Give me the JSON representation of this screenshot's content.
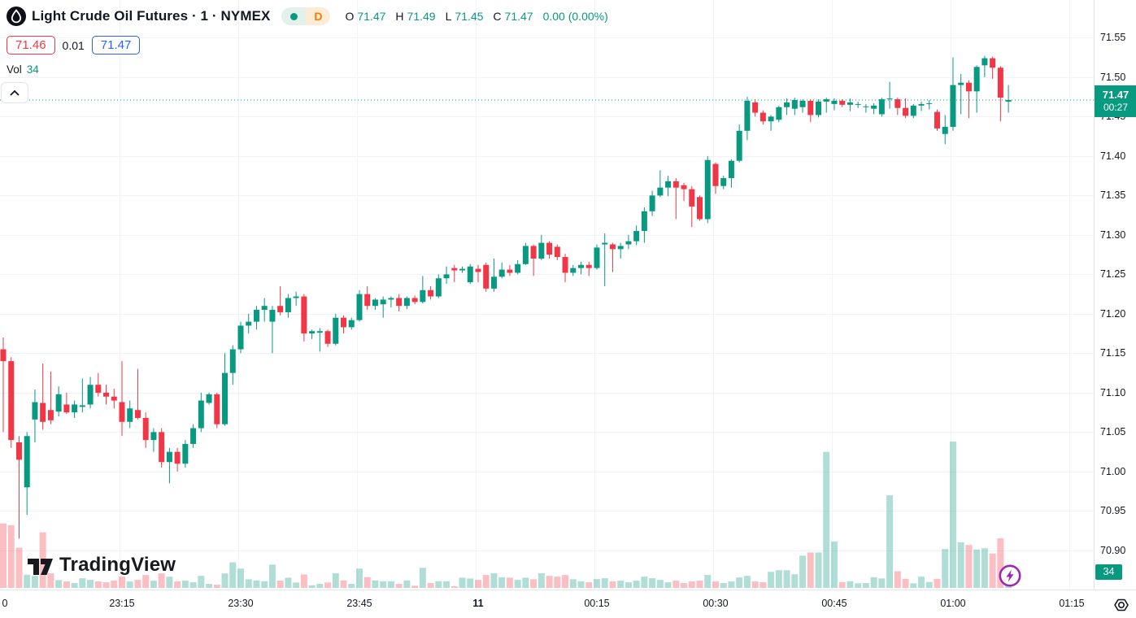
{
  "header": {
    "symbol": "Light Crude Oil Futures · 1 · NYMEX",
    "delayed_badge": "D",
    "ohlc": {
      "open_label": "O",
      "open": "71.47",
      "high_label": "H",
      "high": "71.49",
      "low_label": "L",
      "low": "71.45",
      "close_label": "C",
      "close": "71.47",
      "change": "0.00 (0.00%)"
    },
    "bid": "71.46",
    "spread": "0.01",
    "ask": "71.47",
    "volume_label": "Vol",
    "volume_value": "34"
  },
  "price_scale": {
    "labels": [
      "71.55",
      "71.50",
      "71.45",
      "71.40",
      "71.35",
      "71.30",
      "71.25",
      "71.20",
      "71.15",
      "71.10",
      "71.05",
      "71.00",
      "70.95",
      "70.90"
    ],
    "last_price": "71.47",
    "countdown": "00:27",
    "volume_badge": "34"
  },
  "time_scale": {
    "labels": [
      {
        "text": "0",
        "m": 0,
        "bold": false
      },
      {
        "text": "23:15",
        "m": 15,
        "bold": false
      },
      {
        "text": "23:30",
        "m": 30,
        "bold": false
      },
      {
        "text": "23:45",
        "m": 45,
        "bold": false
      },
      {
        "text": "11",
        "m": 60,
        "bold": true
      },
      {
        "text": "00:15",
        "m": 75,
        "bold": false
      },
      {
        "text": "00:30",
        "m": 90,
        "bold": false
      },
      {
        "text": "00:45",
        "m": 105,
        "bold": false
      },
      {
        "text": "01:00",
        "m": 120,
        "bold": false
      },
      {
        "text": "01:15",
        "m": 135,
        "bold": false
      }
    ]
  },
  "watermark": "TradingView",
  "colors": {
    "up": "#089981",
    "down": "#f23645",
    "up_volume": "rgba(8,153,129,0.32)",
    "down_volume": "rgba(242,54,69,0.32)",
    "grid": "#f0f3fa",
    "axis_border": "#e0e3eb",
    "text": "#131722",
    "bid_red": "#f23645",
    "ask_blue": "#2962ff",
    "delayed_orange": "#f57c00",
    "lightning_purple": "#9c27b0"
  },
  "chart_data": {
    "type": "candlestick",
    "symbol": "Light Crude Oil Futures",
    "exchange": "NYMEX",
    "interval": "1 minute",
    "start_time": "23:00",
    "end_time": "01:07",
    "price_axis_range": [
      70.9,
      71.55
    ],
    "time_axis_range": [
      "23:00",
      "01:15"
    ],
    "grid": true,
    "last_price": 71.47,
    "candles_format": [
      "open",
      "high",
      "low",
      "close",
      "volume"
    ],
    "candles": [
      [
        71.155,
        71.17,
        71.05,
        71.14,
        880
      ],
      [
        71.14,
        71.145,
        71.03,
        71.04,
        858
      ],
      [
        71.037,
        71.045,
        70.915,
        71.015,
        550
      ],
      [
        70.98,
        71.05,
        70.945,
        71.045,
        180
      ],
      [
        71.066,
        71.104,
        71.037,
        71.088,
        165
      ],
      [
        71.087,
        71.137,
        71.053,
        71.063,
        760
      ],
      [
        71.078,
        71.127,
        71.06,
        71.065,
        200
      ],
      [
        71.076,
        71.108,
        71.07,
        71.098,
        107
      ],
      [
        71.085,
        71.1,
        71.073,
        71.075,
        88
      ],
      [
        71.075,
        71.09,
        71.068,
        71.085,
        66
      ],
      [
        71.082,
        71.118,
        71.075,
        71.084,
        132
      ],
      [
        71.085,
        71.12,
        71.08,
        71.11,
        110
      ],
      [
        71.11,
        71.125,
        71.095,
        71.1,
        88
      ],
      [
        71.1,
        71.11,
        71.085,
        71.095,
        77
      ],
      [
        71.095,
        71.105,
        71.08,
        71.09,
        99
      ],
      [
        71.088,
        71.14,
        71.045,
        71.063,
        154
      ],
      [
        71.063,
        71.09,
        71.055,
        71.08,
        88
      ],
      [
        71.078,
        71.13,
        71.066,
        71.068,
        110
      ],
      [
        71.068,
        71.075,
        71.03,
        71.04,
        176
      ],
      [
        71.04,
        71.055,
        71.025,
        71.05,
        99
      ],
      [
        71.05,
        71.055,
        71.005,
        71.012,
        198
      ],
      [
        71.012,
        71.03,
        70.985,
        71.025,
        154
      ],
      [
        71.025,
        71.03,
        71.0,
        71.01,
        88
      ],
      [
        71.01,
        71.04,
        71.005,
        71.035,
        99
      ],
      [
        71.035,
        71.06,
        71.03,
        71.055,
        77
      ],
      [
        71.055,
        71.1,
        71.05,
        71.09,
        165
      ],
      [
        71.087,
        71.1,
        71.085,
        71.098,
        55
      ],
      [
        71.098,
        71.1,
        71.055,
        71.06,
        44
      ],
      [
        71.06,
        71.15,
        71.058,
        71.125,
        198
      ],
      [
        71.125,
        71.16,
        71.11,
        71.155,
        350
      ],
      [
        71.155,
        71.19,
        71.15,
        71.185,
        264
      ],
      [
        71.185,
        71.2,
        71.175,
        71.19,
        118
      ],
      [
        71.19,
        71.21,
        71.18,
        71.205,
        102
      ],
      [
        71.205,
        71.22,
        71.19,
        71.21,
        91
      ],
      [
        71.19,
        71.21,
        71.15,
        71.205,
        319
      ],
      [
        71.21,
        71.235,
        71.198,
        71.202,
        99
      ],
      [
        71.202,
        71.225,
        71.195,
        71.22,
        140
      ],
      [
        71.22,
        71.228,
        71.21,
        71.222,
        74
      ],
      [
        71.222,
        71.225,
        71.165,
        71.175,
        184
      ],
      [
        71.175,
        71.18,
        71.168,
        71.178,
        36
      ],
      [
        71.176,
        71.182,
        71.152,
        71.178,
        55
      ],
      [
        71.178,
        71.18,
        71.158,
        71.162,
        74
      ],
      [
        71.162,
        71.2,
        71.16,
        71.195,
        201
      ],
      [
        71.195,
        71.198,
        71.175,
        71.183,
        102
      ],
      [
        71.183,
        71.195,
        71.18,
        71.192,
        55
      ],
      [
        71.192,
        71.23,
        71.19,
        71.225,
        264
      ],
      [
        71.225,
        71.235,
        71.205,
        71.21,
        146
      ],
      [
        71.21,
        71.22,
        71.205,
        71.218,
        102
      ],
      [
        71.212,
        71.222,
        71.195,
        71.218,
        91
      ],
      [
        71.218,
        71.222,
        71.208,
        71.22,
        91
      ],
      [
        71.22,
        71.225,
        71.203,
        71.21,
        55
      ],
      [
        71.21,
        71.222,
        71.206,
        71.22,
        102
      ],
      [
        71.22,
        71.223,
        71.212,
        71.215,
        30
      ],
      [
        71.215,
        71.248,
        71.213,
        71.23,
        275
      ],
      [
        71.23,
        71.235,
        71.218,
        71.222,
        66
      ],
      [
        71.222,
        71.25,
        71.22,
        71.245,
        91
      ],
      [
        71.245,
        71.26,
        71.238,
        71.25,
        91
      ],
      [
        71.258,
        71.262,
        71.24,
        71.255,
        19
      ],
      [
        71.255,
        71.26,
        71.252,
        71.257,
        140
      ],
      [
        71.24,
        71.263,
        71.238,
        71.26,
        129
      ],
      [
        71.257,
        71.262,
        71.24,
        71.253,
        110
      ],
      [
        71.262,
        71.265,
        71.228,
        71.232,
        176
      ],
      [
        71.232,
        71.27,
        71.228,
        71.247,
        201
      ],
      [
        71.247,
        71.265,
        71.245,
        71.256,
        146
      ],
      [
        71.256,
        71.262,
        71.248,
        71.252,
        140
      ],
      [
        71.252,
        71.268,
        71.25,
        71.263,
        110
      ],
      [
        71.263,
        71.29,
        71.262,
        71.286,
        140
      ],
      [
        71.286,
        71.288,
        71.248,
        71.27,
        118
      ],
      [
        71.27,
        71.3,
        71.268,
        71.29,
        201
      ],
      [
        71.29,
        71.292,
        71.27,
        71.275,
        165
      ],
      [
        71.285,
        71.288,
        71.268,
        71.272,
        154
      ],
      [
        71.272,
        71.276,
        71.24,
        71.252,
        176
      ],
      [
        71.252,
        71.262,
        71.248,
        71.258,
        118
      ],
      [
        71.258,
        71.266,
        71.25,
        71.262,
        91
      ],
      [
        71.262,
        71.266,
        71.248,
        71.258,
        77
      ],
      [
        71.258,
        71.288,
        71.256,
        71.284,
        121
      ],
      [
        71.288,
        71.302,
        71.235,
        71.29,
        132
      ],
      [
        71.288,
        71.29,
        71.253,
        71.282,
        88
      ],
      [
        71.282,
        71.29,
        71.27,
        71.286,
        99
      ],
      [
        71.288,
        71.3,
        71.282,
        71.292,
        77
      ],
      [
        71.292,
        71.312,
        71.287,
        71.305,
        99
      ],
      [
        71.305,
        71.335,
        71.29,
        71.33,
        154
      ],
      [
        71.33,
        71.356,
        71.324,
        71.35,
        132
      ],
      [
        71.35,
        71.382,
        71.348,
        71.36,
        110
      ],
      [
        71.36,
        71.375,
        71.349,
        71.368,
        77
      ],
      [
        71.368,
        71.372,
        71.32,
        71.36,
        99
      ],
      [
        71.363,
        71.366,
        71.343,
        71.358,
        66
      ],
      [
        71.358,
        71.362,
        71.31,
        71.336,
        88
      ],
      [
        71.348,
        71.35,
        71.318,
        71.32,
        99
      ],
      [
        71.32,
        71.4,
        71.315,
        71.395,
        176
      ],
      [
        71.39,
        71.392,
        71.352,
        71.362,
        88
      ],
      [
        71.362,
        71.375,
        71.358,
        71.372,
        66
      ],
      [
        71.372,
        71.396,
        71.36,
        71.394,
        88
      ],
      [
        71.394,
        71.44,
        71.392,
        71.432,
        143
      ],
      [
        71.432,
        71.475,
        71.42,
        71.47,
        165
      ],
      [
        71.468,
        71.472,
        71.45,
        71.455,
        88
      ],
      [
        71.455,
        71.458,
        71.44,
        71.444,
        77
      ],
      [
        71.444,
        71.452,
        71.432,
        71.45,
        220
      ],
      [
        71.446,
        71.464,
        71.443,
        71.462,
        242
      ],
      [
        71.462,
        71.473,
        71.452,
        71.468,
        242
      ],
      [
        71.46,
        71.474,
        71.452,
        71.471,
        187
      ],
      [
        71.462,
        71.472,
        71.455,
        71.47,
        440
      ],
      [
        71.47,
        71.472,
        71.443,
        71.452,
        484
      ],
      [
        71.452,
        71.472,
        71.449,
        71.469,
        484
      ],
      [
        71.469,
        71.474,
        71.455,
        71.472,
        1859
      ],
      [
        71.466,
        71.473,
        71.458,
        71.47,
        635
      ],
      [
        71.47,
        71.472,
        71.462,
        71.465,
        81
      ],
      [
        71.465,
        71.473,
        71.457,
        71.468,
        92
      ],
      [
        71.466,
        71.469,
        71.461,
        71.466,
        63
      ],
      [
        71.462,
        71.466,
        71.455,
        71.463,
        66
      ],
      [
        71.46,
        71.467,
        71.453,
        71.464,
        147
      ],
      [
        71.453,
        71.474,
        71.45,
        71.472,
        129
      ],
      [
        71.472,
        71.494,
        71.46,
        71.473,
        1265
      ],
      [
        71.472,
        71.474,
        71.452,
        71.461,
        228
      ],
      [
        71.461,
        71.473,
        71.448,
        71.451,
        124
      ],
      [
        71.451,
        71.466,
        71.448,
        71.464,
        63
      ],
      [
        71.464,
        71.469,
        71.457,
        71.466,
        154
      ],
      [
        71.466,
        71.471,
        71.459,
        71.467,
        81
      ],
      [
        71.456,
        71.459,
        71.432,
        71.435,
        124
      ],
      [
        71.428,
        71.452,
        71.415,
        71.437,
        531
      ],
      [
        71.437,
        71.525,
        71.432,
        71.49,
        2000
      ],
      [
        71.49,
        71.504,
        71.453,
        71.493,
        624
      ],
      [
        71.493,
        71.496,
        71.448,
        71.482,
        587
      ],
      [
        71.482,
        71.515,
        71.455,
        71.513,
        525
      ],
      [
        71.515,
        71.527,
        71.5,
        71.524,
        542
      ],
      [
        71.524,
        71.526,
        71.498,
        71.512,
        470
      ],
      [
        71.512,
        71.514,
        71.444,
        71.474,
        679
      ],
      [
        71.469,
        71.49,
        71.455,
        71.471,
        34
      ]
    ]
  }
}
